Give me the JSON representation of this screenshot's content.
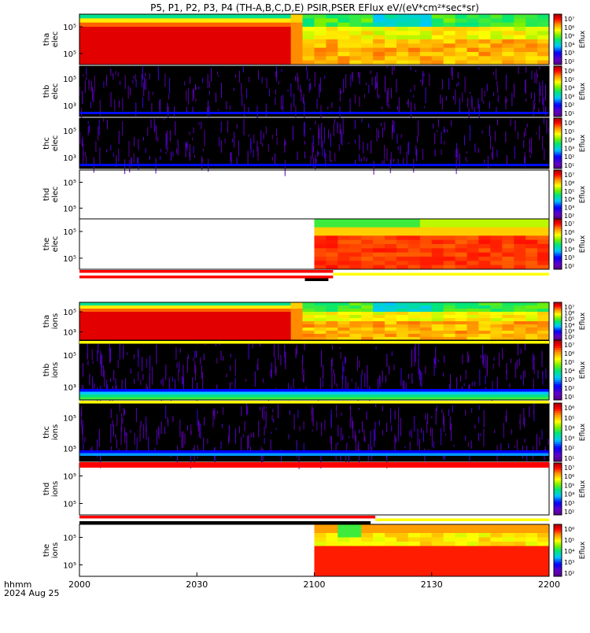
{
  "chart_data": {
    "type": "heatmap",
    "title": "P5, P1, P2, P3, P4 (TH-A,B,C,D,E) PSIR,PSER EFlux eV/(eV*cm²*sec*sr)",
    "x_ticks": [
      "2000",
      "2030",
      "2100",
      "2130",
      "2200"
    ],
    "x_footer": {
      "line1": "hhmm",
      "line2": "2024 Aug 25"
    },
    "colorbar_label": "Eflux",
    "panels": [
      {
        "label1": "tha",
        "label2": "elec",
        "yticks": [
          "10⁵",
          "10⁵"
        ],
        "cbar": [
          "10⁷",
          "10⁶",
          "10⁵",
          "10⁴",
          "10³",
          "10²"
        ],
        "pattern": "full"
      },
      {
        "label1": "thb",
        "label2": "elec",
        "yticks": [
          "10⁵",
          "10³"
        ],
        "cbar": [
          "10⁶",
          "10⁵",
          "10⁴",
          "10³",
          "10²",
          "10¹"
        ],
        "pattern": "noise"
      },
      {
        "label1": "thc",
        "label2": "elec",
        "yticks": [
          "10⁵",
          "10³"
        ],
        "cbar": [
          "10⁶",
          "10⁵",
          "10⁴",
          "10³",
          "10²",
          "10¹"
        ],
        "pattern": "noise"
      },
      {
        "label1": "thd",
        "label2": "elec",
        "yticks": [
          "10⁵",
          "10⁵"
        ],
        "cbar": [
          "10⁷",
          "10⁶",
          "10⁵",
          "10⁴",
          "10³",
          "10²"
        ],
        "pattern": "empty"
      },
      {
        "label1": "the",
        "label2": "elec",
        "yticks": [
          "10⁵",
          "10⁵"
        ],
        "cbar": [
          "10⁷",
          "10⁶",
          "10⁵",
          "10⁴",
          "10³",
          "10²"
        ],
        "pattern": "late"
      },
      {
        "label1": "tha",
        "label2": "ions",
        "yticks": [
          "10⁵",
          "10³"
        ],
        "cbar": [
          "10⁷",
          "10⁶",
          "10⁵",
          "10⁴",
          "10³",
          "10²"
        ],
        "pattern": "full"
      },
      {
        "label1": "thb",
        "label2": "ions",
        "yticks": [
          "10⁵",
          "10³"
        ],
        "cbar": [
          "10⁷",
          "10⁶",
          "10⁵",
          "10⁴",
          "10³",
          "10²",
          "10¹"
        ],
        "pattern": "noise_band"
      },
      {
        "label1": "thc",
        "label2": "ions",
        "yticks": [
          "10⁵",
          "10⁵"
        ],
        "cbar": [
          "10⁶",
          "10⁵",
          "10⁴",
          "10³",
          "10²",
          "10¹"
        ],
        "pattern": "noise_band"
      },
      {
        "label1": "thd",
        "label2": "ions",
        "yticks": [
          "10⁵",
          "10⁵"
        ],
        "cbar": [
          "10⁷",
          "10⁶",
          "10⁵",
          "10⁴",
          "10³",
          "10²"
        ],
        "pattern": "empty"
      },
      {
        "label1": "the",
        "label2": "ions",
        "yticks": [
          "10⁵",
          "10⁵"
        ],
        "cbar": [
          "10⁶",
          "10⁵",
          "10⁴",
          "10³",
          "10²"
        ],
        "pattern": "late_ions"
      }
    ],
    "bars": [
      {
        "after_panel": 4,
        "rows": [
          {
            "color": "#ff0000",
            "end": 0.54
          },
          {
            "color": "#ffff00",
            "start": 0.54
          },
          {
            "color": "#ff0000",
            "end": 0.54
          },
          {
            "color": "#000000",
            "start": 0.48,
            "end": 0.53
          }
        ]
      },
      {
        "after_panel": 5,
        "rows": [
          {
            "color": "#ffff00"
          },
          {
            "color": "#000000",
            "start": 0.0,
            "end": 0.0
          }
        ]
      },
      {
        "after_panel": 6,
        "rows": [
          {
            "color": "#ffff00"
          }
        ]
      },
      {
        "after_panel": 7,
        "rows": [
          {
            "color": "#ff0000"
          },
          {
            "color": "#ff0000"
          }
        ]
      },
      {
        "after_panel": 8,
        "rows": [
          {
            "color": "#ff0000",
            "end": 0.63
          },
          {
            "color": "#ffff00",
            "start": 0.63
          },
          {
            "color": "#000000",
            "end": 0.62
          }
        ]
      }
    ]
  }
}
